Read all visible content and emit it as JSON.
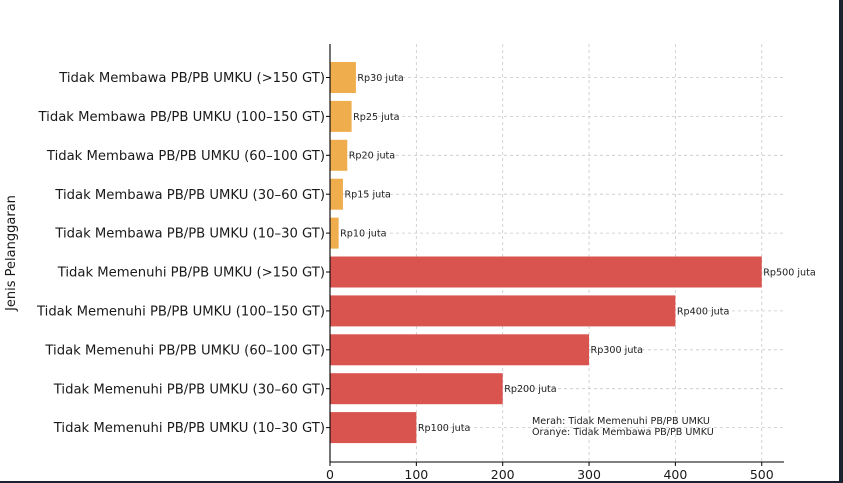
{
  "chart_data": {
    "type": "bar",
    "orientation": "horizontal",
    "title": "",
    "xlabel": "",
    "ylabel": "Jenis Pelanggaran",
    "xlim": [
      0,
      525
    ],
    "x_ticks": [
      0,
      100,
      200,
      300,
      400,
      500
    ],
    "grid": true,
    "categories": [
      "Tidak Membawa PB/PB UMKU (>150 GT)",
      "Tidak Membawa PB/PB UMKU (100–150 GT)",
      "Tidak Membawa PB/PB UMKU (60–100 GT)",
      "Tidak Membawa PB/PB UMKU (30–60 GT)",
      "Tidak Membawa PB/PB UMKU (10–30 GT)",
      "Tidak Memenuhi PB/PB UMKU (>150 GT)",
      "Tidak Memenuhi PB/PB UMKU (100–150 GT)",
      "Tidak Memenuhi PB/PB UMKU (60–100 GT)",
      "Tidak Memenuhi PB/PB UMKU (30–60 GT)",
      "Tidak Memenuhi PB/PB UMKU (10–30 GT)"
    ],
    "values": [
      30,
      25,
      20,
      15,
      10,
      500,
      400,
      300,
      200,
      100
    ],
    "value_labels": [
      "Rp30 juta",
      "Rp25 juta",
      "Rp20 juta",
      "Rp15 juta",
      "Rp10 juta",
      "Rp500 juta",
      "Rp400 juta",
      "Rp300 juta",
      "Rp200 juta",
      "Rp100 juta"
    ],
    "bar_colors": [
      "#f0ad4e",
      "#f0ad4e",
      "#f0ad4e",
      "#f0ad4e",
      "#f0ad4e",
      "#d9534f",
      "#d9534f",
      "#d9534f",
      "#d9534f",
      "#d9534f"
    ],
    "annotations": [
      "Merah: Tidak Memenuhi PB/PB UMKU",
      "Oranye: Tidak Membawa PB/PB UMKU"
    ]
  },
  "colors": {
    "orange": "#f0ad4e",
    "red": "#d9534f",
    "grid": "#c8c8c8",
    "axis": "#000000"
  }
}
